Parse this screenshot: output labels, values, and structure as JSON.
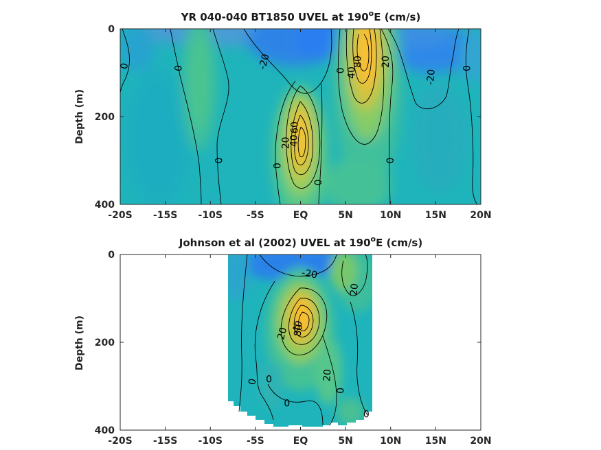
{
  "chart_data": [
    {
      "type": "heatmap",
      "title_main": "YR 040-040 BT1850 UVEL at 190",
      "title_sup": "o",
      "title_tail": "E (cm/s)",
      "ylabel": "Depth (m)",
      "xlim": [
        -20,
        20
      ],
      "ylim": [
        0,
        400
      ],
      "y_reversed": true,
      "x_tick_values": [
        -20,
        -15,
        -10,
        -5,
        0,
        5,
        10,
        15,
        20
      ],
      "x_tick_labels": [
        "-20S",
        "-15S",
        "-10S",
        "-5S",
        "EQ",
        "5N",
        "10N",
        "15N",
        "20N"
      ],
      "y_tick_values": [
        0,
        200,
        400
      ],
      "y_tick_labels": [
        "0",
        "200",
        "400"
      ],
      "data_extent": [
        -20,
        20
      ],
      "contour_labels": [
        {
          "text": "0",
          "x": -19.5,
          "y": 85,
          "rot": -80
        },
        {
          "text": "0",
          "x": -13.5,
          "y": 90,
          "rot": -80
        },
        {
          "text": "-20",
          "x": -4,
          "y": 75,
          "rot": -75
        },
        {
          "text": "0",
          "x": 4.5,
          "y": 95,
          "rot": -90
        },
        {
          "text": "40",
          "x": 5.7,
          "y": 100,
          "rot": -90
        },
        {
          "text": "80",
          "x": 6.4,
          "y": 75,
          "rot": -90
        },
        {
          "text": "20",
          "x": 9.5,
          "y": 75,
          "rot": -90
        },
        {
          "text": "-20",
          "x": 14.5,
          "y": 110,
          "rot": -85
        },
        {
          "text": "0",
          "x": 18.5,
          "y": 90,
          "rot": -90
        },
        {
          "text": "60",
          "x": -0.6,
          "y": 225,
          "rot": -90
        },
        {
          "text": "40",
          "x": -0.7,
          "y": 255,
          "rot": -90
        },
        {
          "text": "20",
          "x": -1.6,
          "y": 260,
          "rot": -90
        },
        {
          "text": "0",
          "x": -9,
          "y": 300,
          "rot": -90
        },
        {
          "text": "0",
          "x": -2.5,
          "y": 312,
          "rot": -90
        },
        {
          "text": "0",
          "x": 2,
          "y": 350,
          "rot": -90
        },
        {
          "text": "0",
          "x": 10,
          "y": 300,
          "rot": -90
        }
      ]
    },
    {
      "type": "heatmap",
      "title_main": "Johnson et al (2002) UVEL at 190",
      "title_sup": "o",
      "title_tail": "E (cm/s)",
      "ylabel": "Depth (m)",
      "xlim": [
        -20,
        20
      ],
      "ylim": [
        0,
        400
      ],
      "y_reversed": true,
      "x_tick_values": [
        -20,
        -15,
        -10,
        -5,
        0,
        5,
        10,
        15,
        20
      ],
      "x_tick_labels": [
        "-20S",
        "-15S",
        "-10S",
        "-5S",
        "EQ",
        "5N",
        "10N",
        "15N",
        "20N"
      ],
      "y_tick_values": [
        0,
        200,
        400
      ],
      "y_tick_labels": [
        "0",
        "200",
        "400"
      ],
      "data_extent": [
        -8,
        8
      ],
      "contour_labels": [
        {
          "text": "-20",
          "x": 1,
          "y": 45,
          "rot": 10
        },
        {
          "text": "20",
          "x": 6,
          "y": 80,
          "rot": -85
        },
        {
          "text": "40",
          "x": -0.3,
          "y": 165,
          "rot": -70
        },
        {
          "text": "80",
          "x": -0.2,
          "y": 173,
          "rot": -80
        },
        {
          "text": "20",
          "x": -2,
          "y": 180,
          "rot": -75
        },
        {
          "text": "20",
          "x": 3,
          "y": 275,
          "rot": -85
        },
        {
          "text": "0",
          "x": -5.3,
          "y": 290,
          "rot": -80
        },
        {
          "text": "0",
          "x": -3.5,
          "y": 285,
          "rot": 0
        },
        {
          "text": "0",
          "x": 4.5,
          "y": 310,
          "rot": -90
        },
        {
          "text": "0",
          "x": -1.5,
          "y": 340,
          "rot": 0
        },
        {
          "text": "0",
          "x": 7.3,
          "y": 365,
          "rot": 0
        }
      ]
    }
  ]
}
